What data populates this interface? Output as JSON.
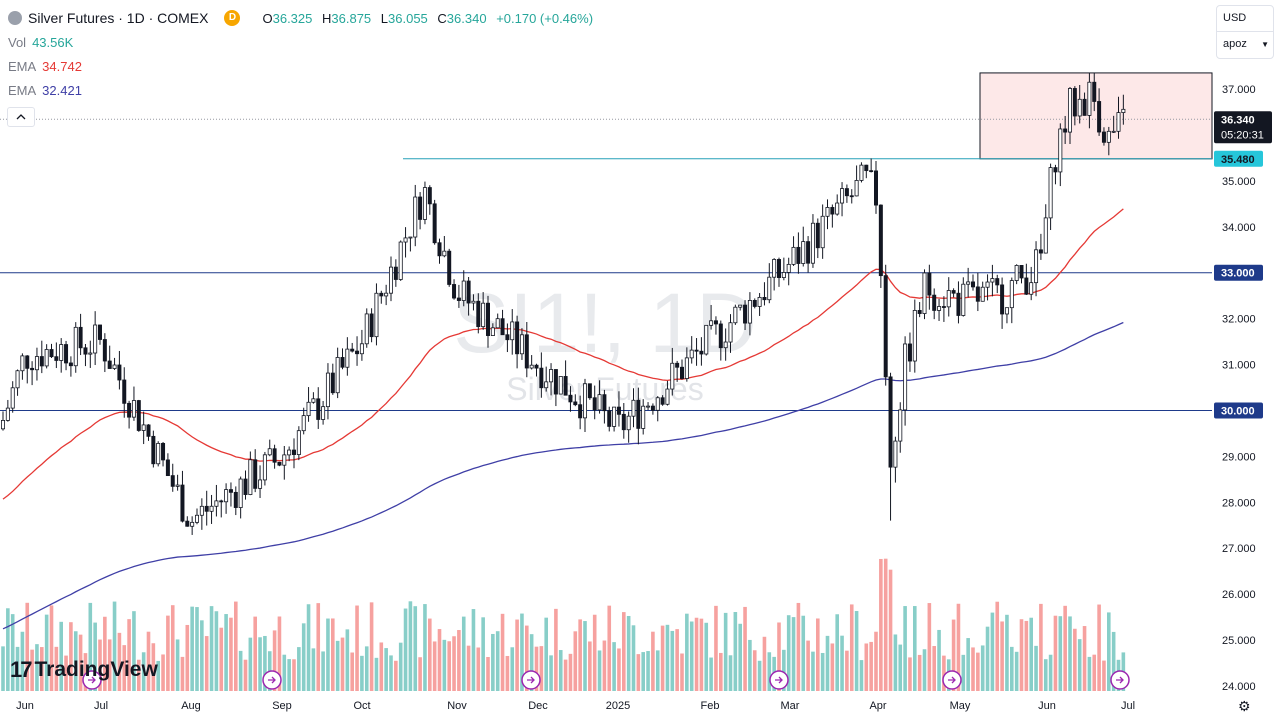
{
  "header": {
    "symbol_title": "Silver Futures · 1D · COMEX",
    "badge": "D",
    "ohlc": {
      "o_label": "O",
      "o": "36.325",
      "h_label": "H",
      "h": "36.875",
      "l_label": "L",
      "l": "36.055",
      "c_label": "C",
      "c": "36.340",
      "change": "+0.170 (+0.46%)"
    }
  },
  "indicators": [
    {
      "label": "Vol",
      "value": "43.56K",
      "color": "#26a69a"
    },
    {
      "label": "EMA",
      "value": "34.742",
      "color": "#e53935"
    },
    {
      "label": "EMA",
      "value": "32.421",
      "color": "#3f3fa6"
    }
  ],
  "currency_menu": {
    "currency": "USD",
    "scale": "apoz"
  },
  "watermark": {
    "symbol": "SI1!, 1D",
    "name": "Silver Futures"
  },
  "price_labels": {
    "last_price": "36.340",
    "countdown": "05:20:31",
    "levels": [
      {
        "text": "35.480",
        "value": 35.48,
        "bg": "#26c6da",
        "fg": "#131722"
      },
      {
        "text": "33.000",
        "value": 33.0,
        "bg": "#1e3a8a",
        "fg": "#ffffff"
      },
      {
        "text": "30.000",
        "value": 30.0,
        "bg": "#1e3a8a",
        "fg": "#ffffff"
      }
    ]
  },
  "brand": "TradingView",
  "colors": {
    "up": "#26a69a",
    "down": "#ef5350",
    "ema_fast": "#e53935",
    "ema_slow": "#3f3fa6",
    "zone_fill": "#fde8e8",
    "zone_line": "#131722"
  },
  "chart_data": {
    "type": "candlestick",
    "title": "Silver Futures · 1D · COMEX",
    "x_tick_labels": [
      "Jun",
      "Jul",
      "Aug",
      "Sep",
      "Oct",
      "Nov",
      "Dec",
      "2025",
      "Feb",
      "Mar",
      "Apr",
      "May",
      "Jun",
      "Jul"
    ],
    "y_tick_labels": [
      "24.000",
      "25.000",
      "26.000",
      "27.000",
      "28.000",
      "29.000",
      "30.000",
      "31.000",
      "32.000",
      "33.000",
      "34.000",
      "35.000",
      "36.000",
      "37.000"
    ],
    "ylim": [
      24.0,
      37.5
    ],
    "horizontal_levels": [
      35.48,
      33.0,
      30.0
    ],
    "resistance_zone": {
      "from_month": "Jun",
      "to": "right edge",
      "low": 35.48,
      "high": 37.35
    },
    "ema_fast_last": 34.742,
    "ema_slow_last": 32.421,
    "volume_last": "43.56K",
    "monthly_close_approx": [
      {
        "month": "Jun",
        "value": 29.6
      },
      {
        "month": "Jul",
        "value": 29.3
      },
      {
        "month": "Aug",
        "value": 28.8
      },
      {
        "month": "Sep",
        "value": 31.2
      },
      {
        "month": "Oct",
        "value": 32.7
      },
      {
        "month": "Nov",
        "value": 31.0
      },
      {
        "month": "Dec",
        "value": 29.4
      },
      {
        "month": "2025",
        "value": 30.6
      },
      {
        "month": "Feb",
        "value": 32.0
      },
      {
        "month": "Mar",
        "value": 34.2
      },
      {
        "month": "Apr",
        "value": 32.4
      },
      {
        "month": "May",
        "value": 32.9
      },
      {
        "month": "Jun",
        "value": 35.9
      },
      {
        "month": "Jul",
        "value": 36.34
      }
    ]
  }
}
